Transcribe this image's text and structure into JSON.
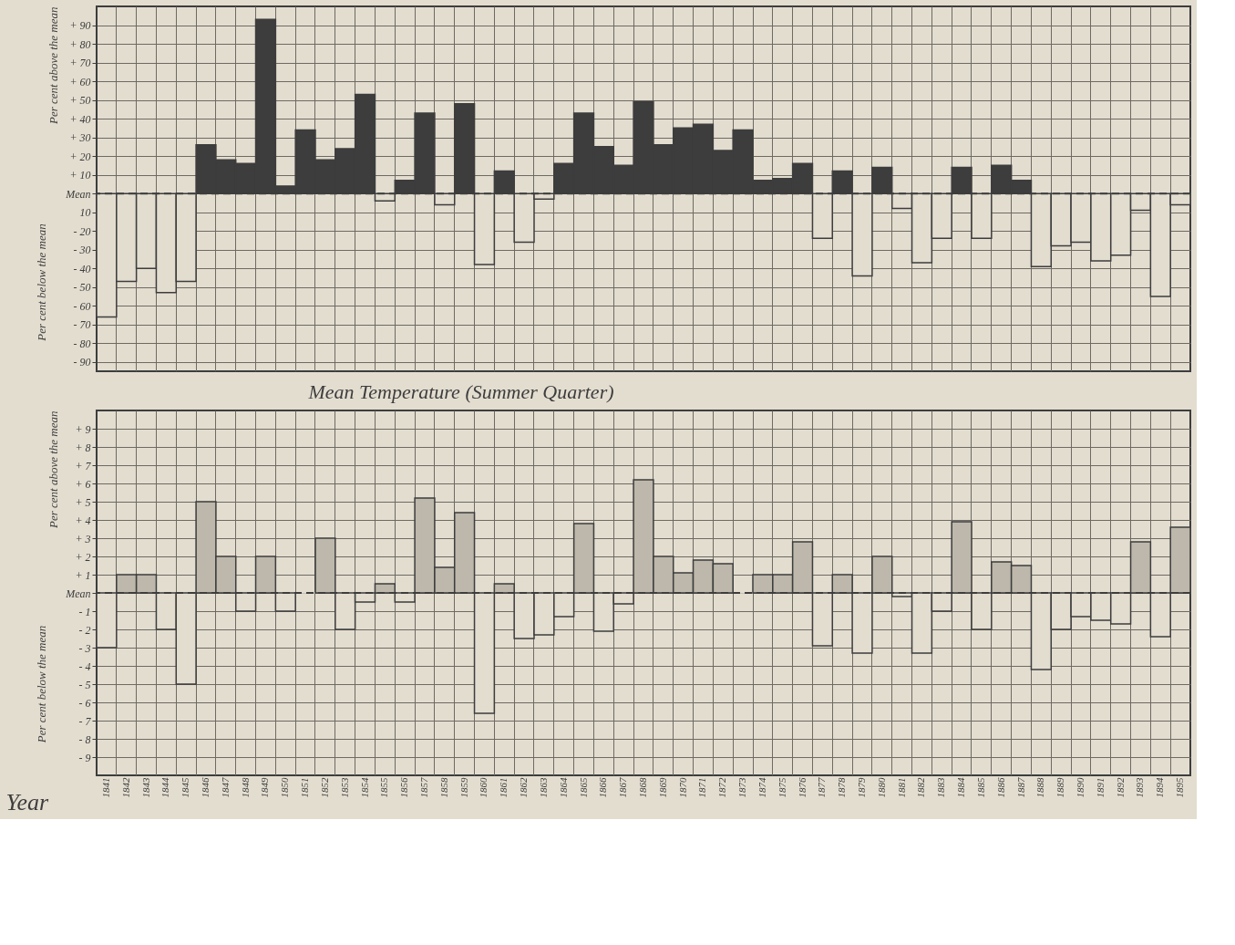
{
  "chart_data": [
    {
      "type": "bar",
      "ylabel": "Per cent above the mean",
      "annotations": [
        "Per cent below the mean"
      ],
      "categories": [
        "1841",
        "1842",
        "1843",
        "1844",
        "1845",
        "1846",
        "1847",
        "1848",
        "1849",
        "1850",
        "1851",
        "1852",
        "1853",
        "1854",
        "1855",
        "1856",
        "1857",
        "1858",
        "1859",
        "1860",
        "1861",
        "1862",
        "1863",
        "1864",
        "1865",
        "1866",
        "1867",
        "1868",
        "1869",
        "1870",
        "1871",
        "1872",
        "1873",
        "1874",
        "1875",
        "1876",
        "1877",
        "1878",
        "1879",
        "1880",
        "1881",
        "1882",
        "1883",
        "1884",
        "1885",
        "1886",
        "1887",
        "1888",
        "1889",
        "1890",
        "1891",
        "1892",
        "1893",
        "1894",
        "1895"
      ],
      "values": [
        -66,
        -47,
        -40,
        -53,
        -47,
        26,
        18,
        16,
        93,
        4,
        34,
        18,
        24,
        53,
        -4,
        7,
        43,
        -6,
        48,
        -38,
        12,
        -26,
        -3,
        16,
        43,
        25,
        15,
        49,
        26,
        35,
        37,
        23,
        34,
        7,
        8,
        16,
        -24,
        12,
        -44,
        14,
        -8,
        -37,
        -24,
        14,
        -24,
        15,
        7,
        -39,
        -28,
        -26,
        -36,
        -33,
        -9,
        -55,
        -6
      ],
      "colors": [
        "#e3ddd0",
        "#e3ddd0",
        "#e3ddd0",
        "#e3ddd0",
        "#e3ddd0",
        "#3d3d3d",
        "#3d3d3d",
        "#3d3d3d",
        "#3d3d3d",
        "#3d3d3d",
        "#3d3d3d",
        "#3d3d3d",
        "#3d3d3d",
        "#3d3d3d",
        "#e3ddd0",
        "#3d3d3d",
        "#3d3d3d",
        "#e3ddd0",
        "#3d3d3d",
        "#e3ddd0",
        "#3d3d3d",
        "#e3ddd0",
        "#e3ddd0",
        "#3d3d3d",
        "#3d3d3d",
        "#3d3d3d",
        "#3d3d3d",
        "#3d3d3d",
        "#3d3d3d",
        "#3d3d3d",
        "#3d3d3d",
        "#3d3d3d",
        "#3d3d3d",
        "#3d3d3d",
        "#3d3d3d",
        "#3d3d3d",
        "#e3ddd0",
        "#3d3d3d",
        "#e3ddd0",
        "#3d3d3d",
        "#e3ddd0",
        "#e3ddd0",
        "#e3ddd0",
        "#3d3d3d",
        "#e3ddd0",
        "#3d3d3d",
        "#3d3d3d",
        "#e3ddd0",
        "#e3ddd0",
        "#e3ddd0",
        "#e3ddd0",
        "#e3ddd0",
        "#e3ddd0",
        "#e3ddd0",
        "#e3ddd0"
      ],
      "ylim": [
        -95,
        100
      ],
      "yticks": [
        {
          "value": 90,
          "label": "+ 90"
        },
        {
          "value": 80,
          "label": "+ 80"
        },
        {
          "value": 70,
          "label": "+ 70"
        },
        {
          "value": 60,
          "label": "+ 60"
        },
        {
          "value": 50,
          "label": "+ 50"
        },
        {
          "value": 40,
          "label": "+ 40"
        },
        {
          "value": 30,
          "label": "+ 30"
        },
        {
          "value": 20,
          "label": "+ 20"
        },
        {
          "value": 10,
          "label": "+ 10"
        },
        {
          "value": 0,
          "label": "Mean"
        },
        {
          "value": -10,
          "label": "10"
        },
        {
          "value": -20,
          "label": "- 20"
        },
        {
          "value": -30,
          "label": "- 30"
        },
        {
          "value": -40,
          "label": "- 40"
        },
        {
          "value": -50,
          "label": "- 50"
        },
        {
          "value": -60,
          "label": "- 60"
        },
        {
          "value": -70,
          "label": "- 70"
        },
        {
          "value": -80,
          "label": "- 80"
        },
        {
          "value": -90,
          "label": "- 90"
        }
      ],
      "ref_lines": [
        {
          "axis": "y",
          "value": 0,
          "line_style": "dashed",
          "color": "#3d3d3d"
        }
      ],
      "grid": true,
      "tick_labels": "y"
    },
    {
      "type": "bar",
      "title": "Mean Temperature (Summer Quarter)",
      "ylabel": "Per cent above the mean",
      "annotations": [
        "Per cent below the mean"
      ],
      "xlabel": "Year",
      "categories": [
        "1841",
        "1842",
        "1843",
        "1844",
        "1845",
        "1846",
        "1847",
        "1848",
        "1849",
        "1850",
        "1851",
        "1852",
        "1853",
        "1854",
        "1855",
        "1856",
        "1857",
        "1858",
        "1859",
        "1860",
        "1861",
        "1862",
        "1863",
        "1864",
        "1865",
        "1866",
        "1867",
        "1868",
        "1869",
        "1870",
        "1871",
        "1872",
        "1873",
        "1874",
        "1875",
        "1876",
        "1877",
        "1878",
        "1879",
        "1880",
        "1881",
        "1882",
        "1883",
        "1884",
        "1885",
        "1886",
        "1887",
        "1888",
        "1889",
        "1890",
        "1891",
        "1892",
        "1893",
        "1894",
        "1895"
      ],
      "values": [
        -3,
        1.0,
        1.0,
        -2,
        -5,
        5,
        2,
        -1,
        2,
        -1,
        0,
        3,
        -2,
        -0.5,
        0.5,
        -0.5,
        5.2,
        1.4,
        4.4,
        -6.6,
        0.5,
        -2.5,
        -2.3,
        -1.3,
        3.8,
        -2.1,
        -0.6,
        6.2,
        2.0,
        1.1,
        1.8,
        1.6,
        0,
        1.0,
        1.0,
        2.8,
        -2.9,
        1.0,
        -3.3,
        2.0,
        -0.2,
        -3.3,
        -1.0,
        3.9,
        -2.0,
        1.7,
        1.5,
        -4.2,
        -2.0,
        -1.3,
        -1.5,
        -1.7,
        2.8,
        -2.4,
        3.6
      ],
      "colors": [
        "#e3ddd0",
        "#bdb8ab",
        "#bdb8ab",
        "#e3ddd0",
        "#e3ddd0",
        "#bdb8ab",
        "#bdb8ab",
        "#e3ddd0",
        "#bdb8ab",
        "#e3ddd0",
        "#e3ddd0",
        "#bdb8ab",
        "#e3ddd0",
        "#e3ddd0",
        "#bdb8ab",
        "#e3ddd0",
        "#bdb8ab",
        "#bdb8ab",
        "#bdb8ab",
        "#e3ddd0",
        "#bdb8ab",
        "#e3ddd0",
        "#e3ddd0",
        "#e3ddd0",
        "#bdb8ab",
        "#e3ddd0",
        "#e3ddd0",
        "#bdb8ab",
        "#bdb8ab",
        "#bdb8ab",
        "#bdb8ab",
        "#bdb8ab",
        "#e3ddd0",
        "#bdb8ab",
        "#bdb8ab",
        "#bdb8ab",
        "#e3ddd0",
        "#bdb8ab",
        "#e3ddd0",
        "#bdb8ab",
        "#e3ddd0",
        "#e3ddd0",
        "#e3ddd0",
        "#bdb8ab",
        "#e3ddd0",
        "#bdb8ab",
        "#bdb8ab",
        "#e3ddd0",
        "#e3ddd0",
        "#e3ddd0",
        "#e3ddd0",
        "#e3ddd0",
        "#bdb8ab",
        "#e3ddd0",
        "#bdb8ab"
      ],
      "ylim": [
        -10,
        10
      ],
      "yticks": [
        {
          "value": 9,
          "label": "+ 9"
        },
        {
          "value": 8,
          "label": "+ 8"
        },
        {
          "value": 7,
          "label": "+ 7"
        },
        {
          "value": 6,
          "label": "+ 6"
        },
        {
          "value": 5,
          "label": "+ 5"
        },
        {
          "value": 4,
          "label": "+ 4"
        },
        {
          "value": 3,
          "label": "+ 3"
        },
        {
          "value": 2,
          "label": "+ 2"
        },
        {
          "value": 1,
          "label": "+ 1"
        },
        {
          "value": 0,
          "label": "Mean"
        },
        {
          "value": -1,
          "label": "- 1"
        },
        {
          "value": -2,
          "label": "- 2"
        },
        {
          "value": -3,
          "label": "- 3"
        },
        {
          "value": -4,
          "label": "- 4"
        },
        {
          "value": -5,
          "label": "- 5"
        },
        {
          "value": -6,
          "label": "- 6"
        },
        {
          "value": -7,
          "label": "- 7"
        },
        {
          "value": -8,
          "label": "- 8"
        },
        {
          "value": -9,
          "label": "- 9"
        }
      ],
      "ref_lines": [
        {
          "axis": "y",
          "value": 0,
          "line_style": "dashed",
          "color": "#3d3d3d"
        }
      ],
      "grid": true
    }
  ]
}
